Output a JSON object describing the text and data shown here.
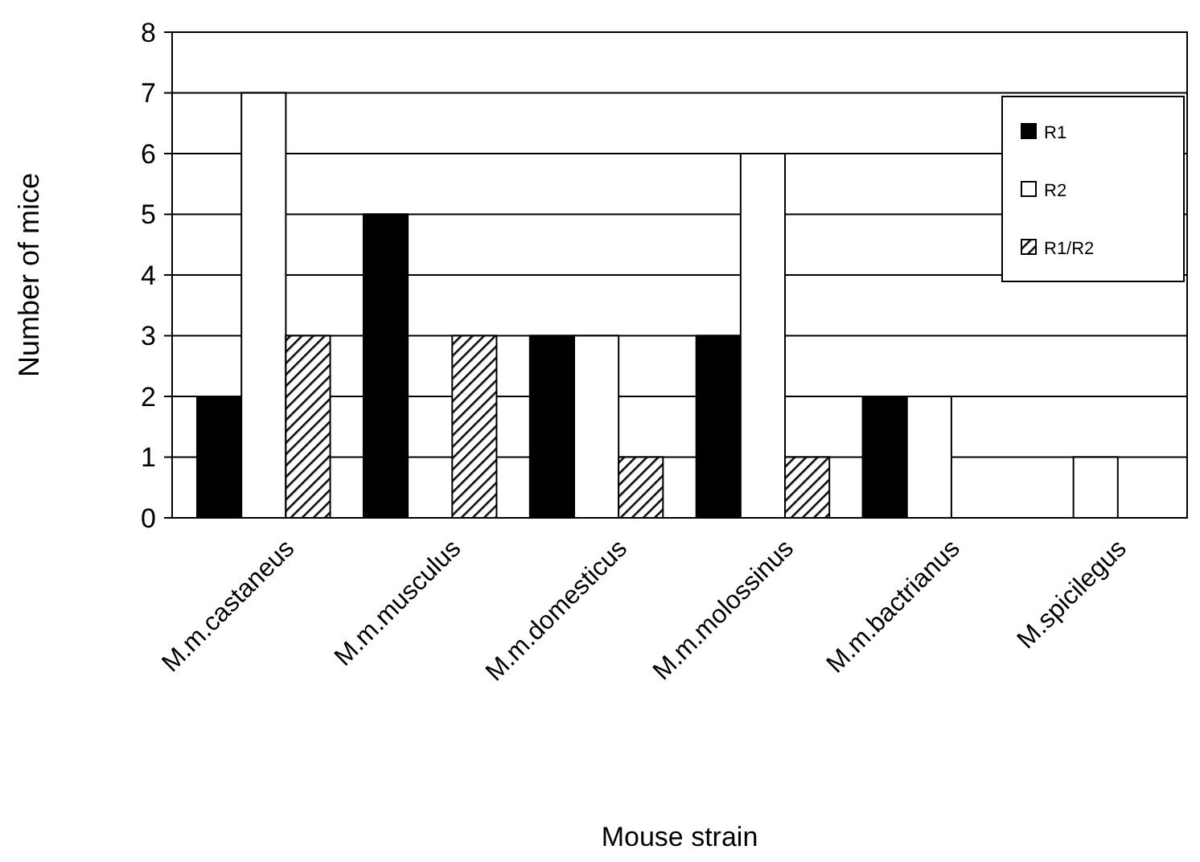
{
  "chart_data": {
    "type": "bar",
    "xlabel": "Mouse strain",
    "ylabel": "Number of mice",
    "categories": [
      "M.m.castaneus",
      "M.m.musculus",
      "M.m.domesticus",
      "M.m.molossinus",
      "M.m.bactrianus",
      "M.spicilegus"
    ],
    "series": [
      {
        "name": "R1",
        "color": "#000000",
        "values": [
          2,
          5,
          3,
          3,
          2,
          0
        ]
      },
      {
        "name": "R2",
        "color": "#ffffff",
        "values": [
          7,
          0,
          3,
          6,
          2,
          1
        ]
      },
      {
        "name": "R1/R2",
        "color": "#000000",
        "values": [
          3,
          3,
          1,
          1,
          0,
          0
        ]
      }
    ],
    "ylim": [
      0,
      8
    ],
    "yticks": [
      0,
      1,
      2,
      3,
      4,
      5,
      6,
      7,
      8
    ],
    "grid": "y",
    "legend": "top right"
  }
}
